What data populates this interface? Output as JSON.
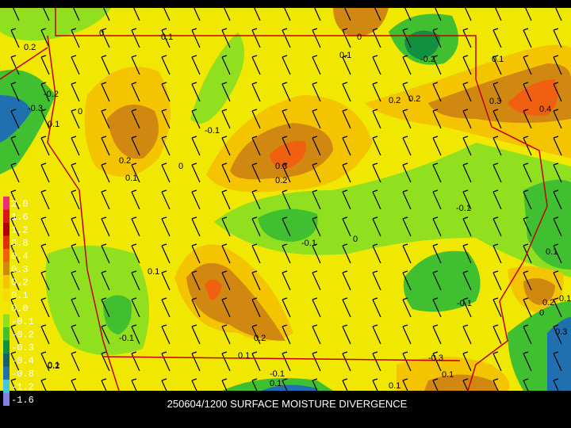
{
  "title": "250604/1200 SURFACE MOISTURE DIVERGENCE",
  "legend": {
    "items": [
      {
        "label": "2.0",
        "color": "#e8307a"
      },
      {
        "label": "1.6",
        "color": "#d81818"
      },
      {
        "label": "1.2",
        "color": "#b00000"
      },
      {
        "label": "0.8",
        "color": "#e03000"
      },
      {
        "label": "0.4",
        "color": "#f06010"
      },
      {
        "label": "0.3",
        "color": "#d08810"
      },
      {
        "label": "0.2",
        "color": "#f4c400"
      },
      {
        "label": "0.1",
        "color": "#f8dc00"
      },
      {
        "label": "0.0",
        "color": "#f0e800"
      },
      {
        "label": "-0.1",
        "color": "#90e020"
      },
      {
        "label": "-0.2",
        "color": "#40c030"
      },
      {
        "label": "-0.3",
        "color": "#109040"
      },
      {
        "label": "-0.4",
        "color": "#186070"
      },
      {
        "label": "-0.8",
        "color": "#2070b0"
      },
      {
        "label": "-1.2",
        "color": "#40c8e0"
      },
      {
        "label": "-1.6",
        "color": "#8080e0"
      }
    ]
  },
  "contour_labels": [
    "0",
    "0.1",
    "0.2",
    "0.1",
    "-0.2",
    "0.1",
    "0",
    "0.2",
    "0.2",
    "0.3",
    "0.4",
    "-0.2",
    "-0.3",
    "0.1",
    "0",
    "-0.1",
    "0.2",
    "0.1",
    "0",
    "0.3",
    "0.2",
    "-0.1",
    "0.1",
    "0",
    "-0.1",
    "0.1",
    "-0.1",
    "0",
    "0.2",
    "-0.1",
    "0.1",
    "0.2",
    "0.1",
    "0.3",
    "0.1",
    "-0.1",
    "0.1",
    "-0.3",
    "0.1",
    "0.2",
    "0.1"
  ]
}
